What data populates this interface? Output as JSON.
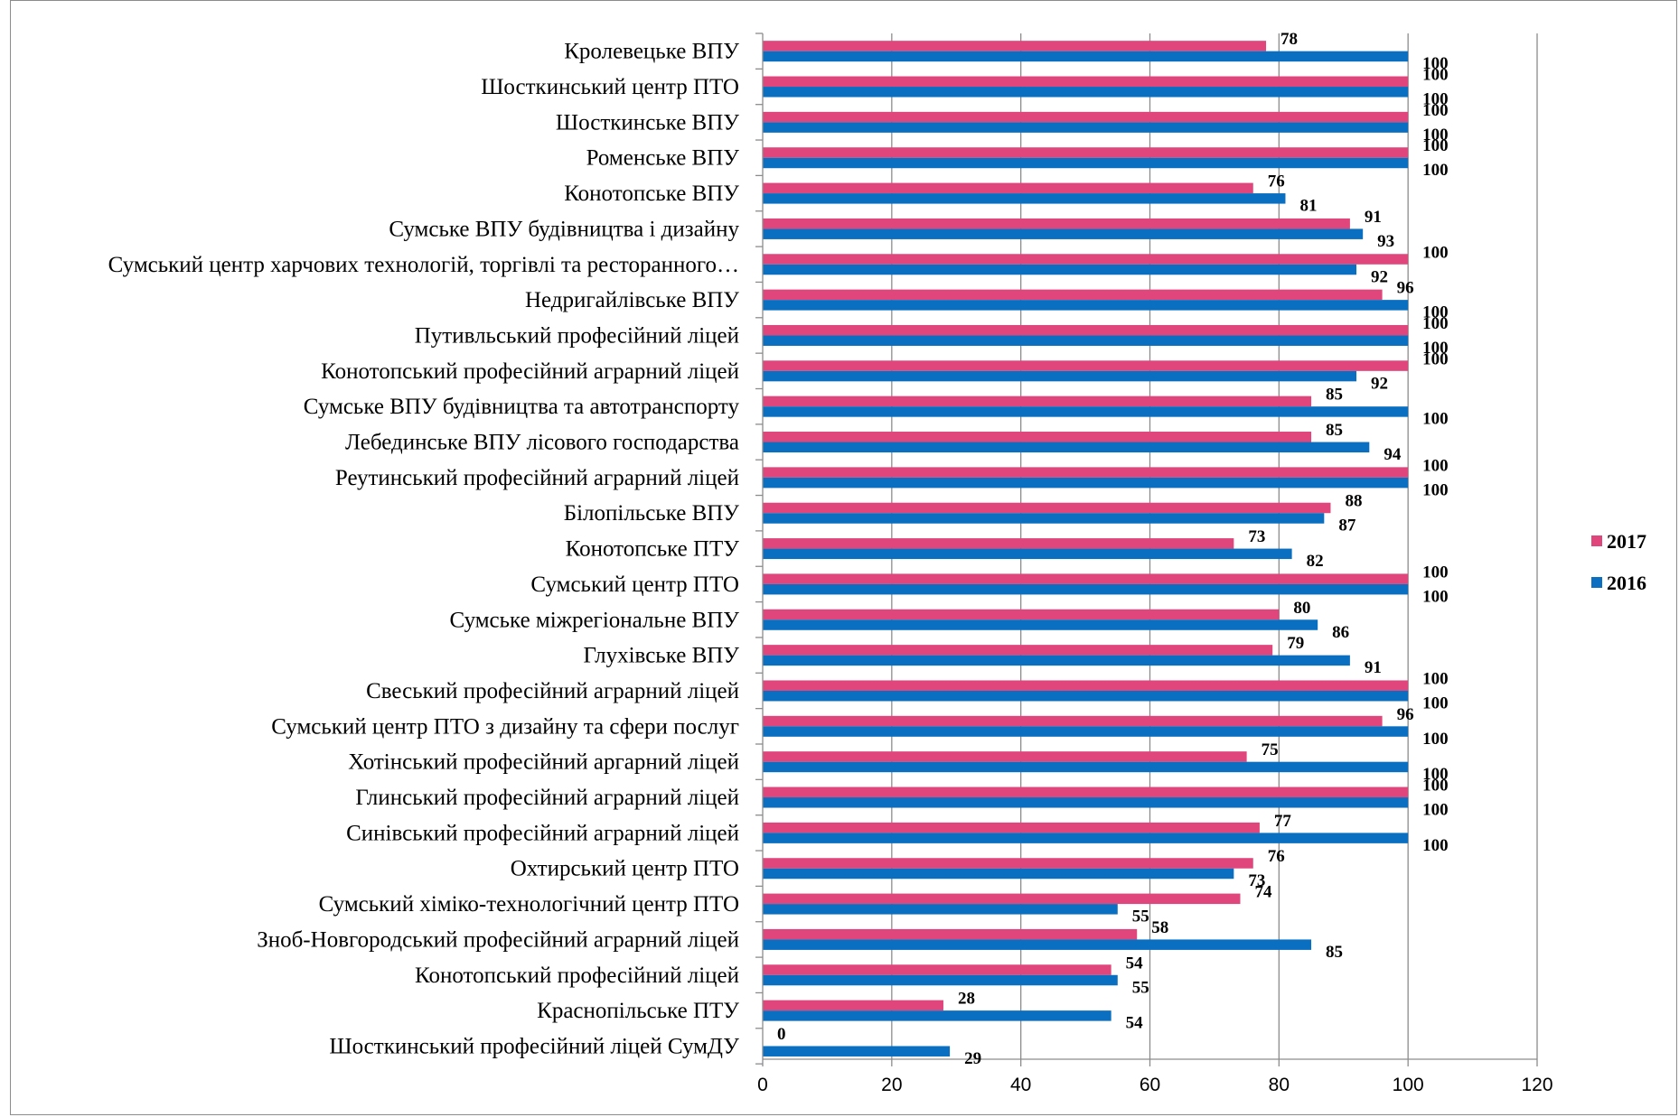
{
  "chart_data": {
    "type": "bar",
    "orientation": "horizontal",
    "categories": [
      "Кролевецьке ВПУ",
      "Шосткинський центр ПТО",
      "Шосткинське ВПУ",
      "Роменське ВПУ",
      "Конотопське ВПУ",
      "Сумське ВПУ будівництва і дизайну",
      "Сумський центр харчових технологій, торгівлі та ресторанного…",
      "Недригайлівське ВПУ",
      "Путивльський професійний ліцей",
      "Конотопський професійний аграрний ліцей",
      "Сумське ВПУ будівництва та автотранспорту",
      "Лебединське ВПУ лісового господарства",
      "Реутинський професійний аграрний ліцей",
      "Білопільське ВПУ",
      "Конотопське ПТУ",
      "Сумський центр ПТО",
      "Сумське міжрегіональне ВПУ",
      "Глухівське ВПУ",
      "Свеський професійний аграрний ліцей",
      "Сумський центр ПТО з дизайну та сфери послуг",
      "Хотінський професійний аргарний ліцей",
      "Глинський професійний аграрний ліцей",
      "Синівський професійний аграрний ліцей",
      "Охтирський центр ПТО",
      "Сумський хіміко-технологічний центр ПТО",
      "Зноб-Новгородський професійний аграрний ліцей",
      "Конотопський професійний ліцей",
      "Краснопільське ПТУ",
      "Шосткинський професійний ліцей СумДУ"
    ],
    "series": [
      {
        "name": "2017",
        "color": "#e0457b",
        "values": [
          78,
          100,
          100,
          100,
          76,
          91,
          100,
          96,
          100,
          100,
          85,
          85,
          100,
          88,
          73,
          100,
          80,
          79,
          100,
          96,
          75,
          100,
          77,
          76,
          74,
          58,
          54,
          28,
          0
        ]
      },
      {
        "name": "2016",
        "color": "#0b6fc1",
        "values": [
          100,
          100,
          100,
          100,
          81,
          93,
          92,
          100,
          100,
          92,
          100,
          94,
          100,
          87,
          82,
          100,
          86,
          91,
          100,
          100,
          100,
          100,
          100,
          73,
          55,
          85,
          55,
          54,
          29
        ]
      }
    ],
    "xlim": [
      0,
      120
    ],
    "xticks": [
      0,
      20,
      40,
      60,
      80,
      100,
      120
    ],
    "grid": "vertical",
    "legend": "right",
    "title": "",
    "xlabel": "",
    "ylabel": ""
  }
}
